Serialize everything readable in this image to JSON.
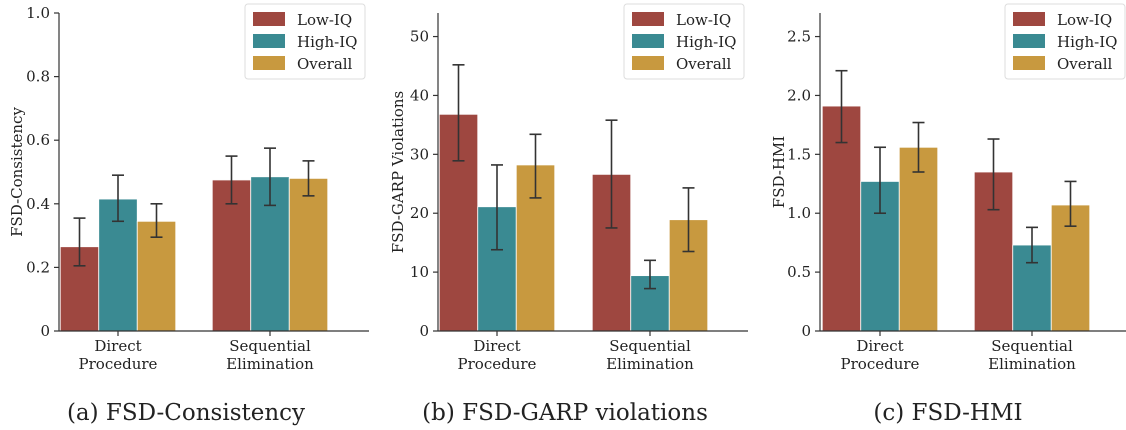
{
  "colors": {
    "low_iq": "#9e4740",
    "high_iq": "#3a8a92",
    "overall": "#c8993f",
    "error_bar": "#333333",
    "axis": "#333333"
  },
  "legend": [
    "Low-IQ",
    "High-IQ",
    "Overall"
  ],
  "categories": [
    "Direct\nProcedure",
    "Sequential\nElimination"
  ],
  "captions": [
    "(a) FSD-Consistency",
    "(b) FSD-GARP violations",
    "(c) FSD-HMI"
  ],
  "chart_data": [
    {
      "type": "bar",
      "title": "",
      "caption": "(a) FSD-Consistency",
      "ylabel": "FSD-Consistency",
      "ylim": [
        0,
        1.0
      ],
      "yticks": [
        0,
        0.2,
        0.4,
        0.6,
        0.8,
        1.0
      ],
      "ytick_labels": [
        "0",
        "0.2",
        "0.4",
        "0.6",
        "0.8",
        "1.0"
      ],
      "categories": [
        "Direct Procedure",
        "Sequential Elimination"
      ],
      "series": [
        {
          "name": "Low-IQ",
          "values": [
            0.265,
            0.475
          ],
          "err_low": [
            0.205,
            0.4
          ],
          "err_high": [
            0.355,
            0.55
          ]
        },
        {
          "name": "High-IQ",
          "values": [
            0.415,
            0.485
          ],
          "err_low": [
            0.345,
            0.395
          ],
          "err_high": [
            0.49,
            0.575
          ]
        },
        {
          "name": "Overall",
          "values": [
            0.345,
            0.48
          ],
          "err_low": [
            0.295,
            0.425
          ],
          "err_high": [
            0.4,
            0.535
          ]
        }
      ],
      "legend_position": "top-right"
    },
    {
      "type": "bar",
      "title": "",
      "caption": "(b) FSD-GARP violations",
      "ylabel": "FSD-GARP Violations",
      "ylim": [
        0,
        54
      ],
      "yticks": [
        0,
        10,
        20,
        30,
        40,
        50
      ],
      "ytick_labels": [
        "0",
        "10",
        "20",
        "30",
        "40",
        "50"
      ],
      "categories": [
        "Direct Procedure",
        "Sequential Elimination"
      ],
      "series": [
        {
          "name": "Low-IQ",
          "values": [
            36.8,
            26.6
          ],
          "err_low": [
            28.9,
            17.5
          ],
          "err_high": [
            45.2,
            35.8
          ]
        },
        {
          "name": "High-IQ",
          "values": [
            21.1,
            9.4
          ],
          "err_low": [
            13.8,
            7.2
          ],
          "err_high": [
            28.2,
            12.0
          ]
        },
        {
          "name": "Overall",
          "values": [
            28.2,
            18.9
          ],
          "err_low": [
            22.6,
            13.5
          ],
          "err_high": [
            33.4,
            24.3
          ]
        }
      ],
      "legend_position": "top-right"
    },
    {
      "type": "bar",
      "title": "",
      "caption": "(c) FSD-HMI",
      "ylabel": "FSD-HMI",
      "ylim": [
        0,
        2.7
      ],
      "yticks": [
        0,
        0.5,
        1.0,
        1.5,
        2.0,
        2.5
      ],
      "ytick_labels": [
        "0",
        "0.5",
        "1.0",
        "1.5",
        "2.0",
        "2.5"
      ],
      "categories": [
        "Direct Procedure",
        "Sequential Elimination"
      ],
      "series": [
        {
          "name": "Low-IQ",
          "values": [
            1.91,
            1.35
          ],
          "err_low": [
            1.6,
            1.03
          ],
          "err_high": [
            2.21,
            1.63
          ]
        },
        {
          "name": "High-IQ",
          "values": [
            1.27,
            0.73
          ],
          "err_low": [
            1.0,
            0.58
          ],
          "err_high": [
            1.56,
            0.88
          ]
        },
        {
          "name": "Overall",
          "values": [
            1.56,
            1.07
          ],
          "err_low": [
            1.35,
            0.89
          ],
          "err_high": [
            1.77,
            1.27
          ]
        }
      ],
      "legend_position": "top-right"
    }
  ]
}
